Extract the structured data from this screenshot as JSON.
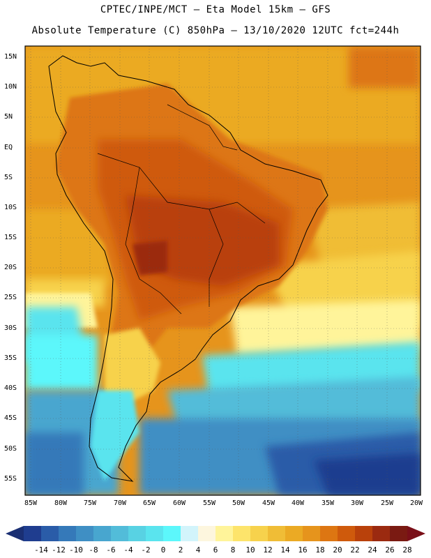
{
  "header": {
    "line1": "CPTEC/INPE/MCT –  Eta Model 15km – GFS",
    "line2": "Absolute Temperature (C) 850hPa – 13/10/2020 12UTC fct=244h"
  },
  "map": {
    "region": "South America",
    "lat_labels": [
      "15N",
      "10N",
      "5N",
      "EQ",
      "5S",
      "10S",
      "15S",
      "20S",
      "25S",
      "30S",
      "35S",
      "40S",
      "45S",
      "50S",
      "55S"
    ],
    "lon_labels": [
      "85W",
      "80W",
      "75W",
      "70W",
      "65W",
      "60W",
      "55W",
      "50W",
      "45W",
      "40W",
      "35W",
      "30W",
      "25W",
      "20W"
    ],
    "gridlines": "dotted"
  },
  "colorbar": {
    "labels": [
      "-14",
      "-12",
      "-10",
      "-8",
      "-6",
      "-4",
      "-2",
      "0",
      "2",
      "4",
      "6",
      "8",
      "10",
      "12",
      "14",
      "16",
      "18",
      "20",
      "22",
      "24",
      "26",
      "28"
    ],
    "colors": [
      "#1f3d8f",
      "#2a5ca8",
      "#3579b9",
      "#3f8fc4",
      "#48a6cf",
      "#52bcd9",
      "#58d2e3",
      "#5ae4ee",
      "#5cf7fb",
      "#d2f4fb",
      "#fdf6de",
      "#fff49a",
      "#fde46b",
      "#f7d24c",
      "#f0bd36",
      "#ebaa24",
      "#e6941c",
      "#dd7612",
      "#cf5a0c",
      "#b9410b",
      "#9b2a10",
      "#7a1a12"
    ],
    "arrow_low_color": "#1a2f73",
    "arrow_high_color": "#7a0f18"
  }
}
